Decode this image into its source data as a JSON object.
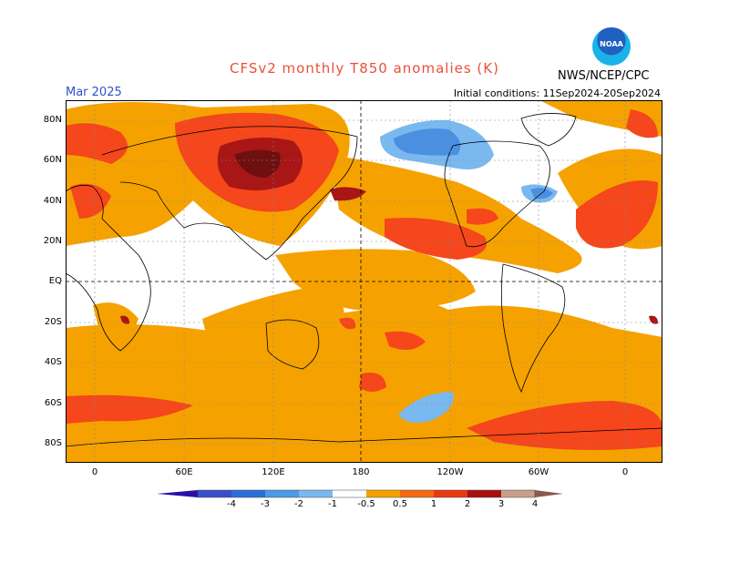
{
  "header": {
    "title": "CFSv2 monthly T850 anomalies (K)",
    "valid_month": "Mar 2025",
    "initial_conditions": "Initial conditions: 11Sep2024-20Sep2024",
    "org": "NWS/NCEP/CPC",
    "logo_text": "NOAA"
  },
  "axes": {
    "lat_labels": [
      "80N",
      "60N",
      "40N",
      "20N",
      "EQ",
      "20S",
      "40S",
      "60S",
      "80S"
    ],
    "lon_labels": [
      "0",
      "60E",
      "120E",
      "180",
      "120W",
      "60W",
      "0"
    ]
  },
  "colorbar": {
    "labels": [
      "-4",
      "-3",
      "-2",
      "-1",
      "-0.5",
      "0.5",
      "1",
      "2",
      "3",
      "4"
    ],
    "colors": [
      "#2a0ea8",
      "#3a4ec8",
      "#2a6fd8",
      "#4a9ae8",
      "#7ab8f0",
      "#ffffff",
      "#f5a200",
      "#f56a10",
      "#e83a10",
      "#a81010",
      "#c8a08a",
      "#8a5a50"
    ]
  },
  "colors": {
    "pos_05": "#f5a200",
    "pos_1": "#f5461c",
    "pos_2": "#a81616",
    "pos_3": "#6e1010",
    "neg_05": "#7ab8f0",
    "neg_1": "#4a8fe0"
  }
}
